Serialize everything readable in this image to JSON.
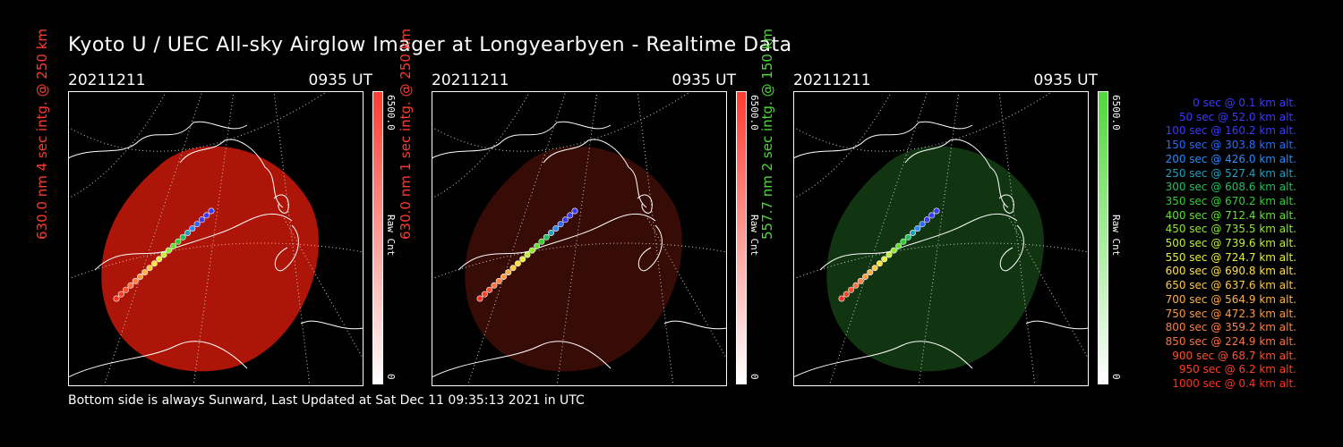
{
  "title": "Kyoto U / UEC All-sky Airglow Imager at Longyearbyen - Realtime Data",
  "footer": "Bottom side is always Sunward, Last Updated at Sat Dec 11 09:35:13 2021 in UTC",
  "panels": [
    {
      "date": "20211211",
      "time": "0935 UT",
      "ylabel": "630.0 nm 4 sec intg. @ 250 km",
      "ylabel_color": "#ff3b2f",
      "cbar_max": "6500.0",
      "cbar_label": "Raw Cnt",
      "cbar_min": "0",
      "tint": "#b51608",
      "tint_opacity": 0.95
    },
    {
      "date": "20211211",
      "time": "0935 UT",
      "ylabel": "630.0 nm 1 sec intg. @ 250 km",
      "ylabel_color": "#ff3b2f",
      "cbar_max": "6500.0",
      "cbar_label": "Raw Cnt",
      "cbar_min": "0",
      "tint": "#3a0c06",
      "tint_opacity": 0.95
    },
    {
      "date": "20211211",
      "time": "0935 UT",
      "ylabel": "557.7 nm 2 sec intg. @ 150 km",
      "ylabel_color": "#4fd83a",
      "cbar_max": "6500.0",
      "cbar_label": "Raw Cnt",
      "cbar_min": "0",
      "tint": "#133812",
      "tint_opacity": 0.95
    }
  ],
  "legend": [
    {
      "text": "0 sec @    0.1 km alt.",
      "color": "#3a3aff"
    },
    {
      "text": "50 sec @   52.0 km alt.",
      "color": "#3a3aff"
    },
    {
      "text": "100 sec @  160.2 km alt.",
      "color": "#3a3aff"
    },
    {
      "text": "150 sec @  303.8 km alt.",
      "color": "#2a6aff"
    },
    {
      "text": "200 sec @  426.0 km alt.",
      "color": "#2a8aff"
    },
    {
      "text": "250 sec @  527.4 km alt.",
      "color": "#20a0c0"
    },
    {
      "text": "300 sec @  608.6 km alt.",
      "color": "#20c060"
    },
    {
      "text": "350 sec @  670.2 km alt.",
      "color": "#30d030"
    },
    {
      "text": "400 sec @  712.4 km alt.",
      "color": "#60e030"
    },
    {
      "text": "450 sec @  735.5 km alt.",
      "color": "#90e830"
    },
    {
      "text": "500 sec @  739.6 km alt.",
      "color": "#c0f030"
    },
    {
      "text": "550 sec @  724.7 km alt.",
      "color": "#e8f030"
    },
    {
      "text": "600 sec @  690.8 km alt.",
      "color": "#ffe040"
    },
    {
      "text": "650 sec @  637.6 km alt.",
      "color": "#ffc840"
    },
    {
      "text": "700 sec @  564.9 km alt.",
      "color": "#ffb040"
    },
    {
      "text": "750 sec @  472.3 km alt.",
      "color": "#ff9840"
    },
    {
      "text": "800 sec @  359.2 km alt.",
      "color": "#ff8040"
    },
    {
      "text": "850 sec @  224.9 km alt.",
      "color": "#ff7040"
    },
    {
      "text": "900 sec @   68.7 km alt.",
      "color": "#ff5030"
    },
    {
      "text": "950 sec @    6.2 km alt.",
      "color": "#ff4020"
    },
    {
      "text": "1000 sec @    0.4 km alt.",
      "color": "#ff3020"
    }
  ]
}
